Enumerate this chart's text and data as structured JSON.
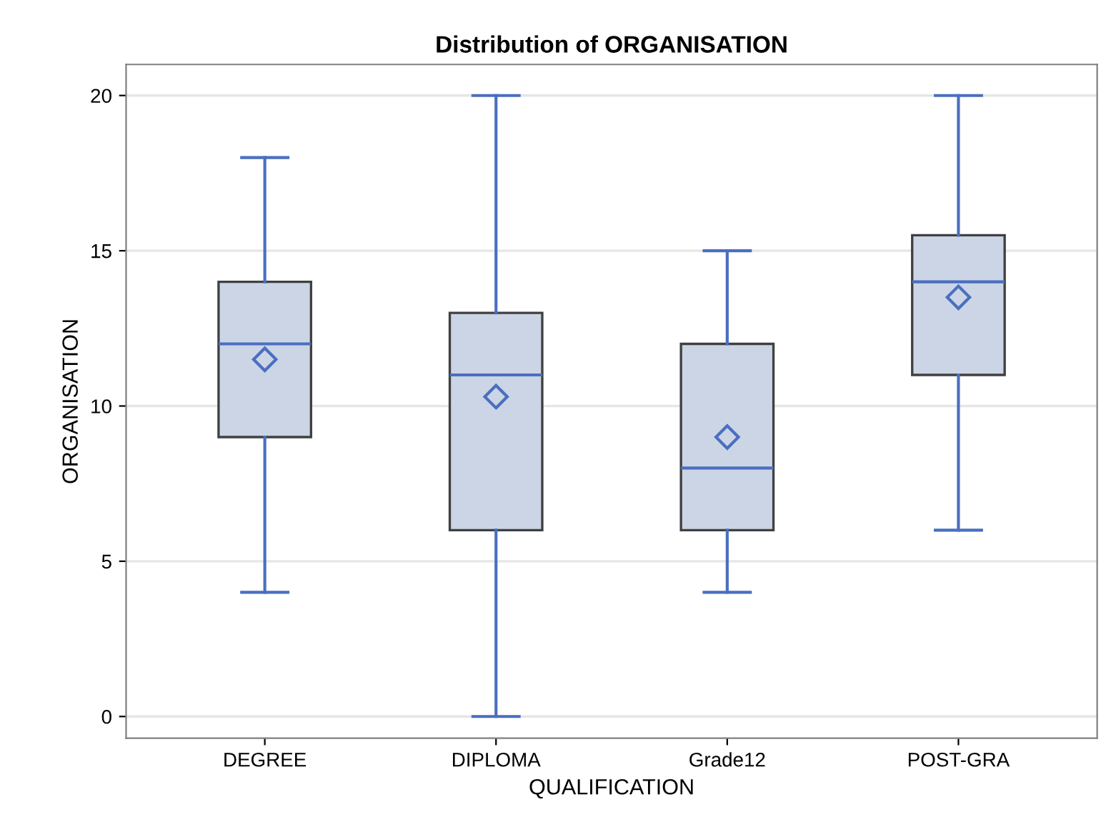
{
  "chart_data": {
    "type": "box",
    "title": "Distribution of ORGANISATION",
    "xlabel": "QUALIFICATION",
    "ylabel": "ORGANISATION",
    "categories": [
      "DEGREE",
      "DIPLOMA",
      "Grade12",
      "POST-GRA"
    ],
    "boxes": [
      {
        "low": 4,
        "q1": 9,
        "median": 12,
        "q3": 14,
        "high": 18,
        "mean": 11.5
      },
      {
        "low": 0,
        "q1": 6,
        "median": 11,
        "q3": 13,
        "high": 20,
        "mean": 10.3
      },
      {
        "low": 4,
        "q1": 6,
        "median": 8,
        "q3": 12,
        "high": 15,
        "mean": 9.0
      },
      {
        "low": 6,
        "q1": 11,
        "median": 14,
        "q3": 15.5,
        "high": 20,
        "mean": 13.5
      }
    ],
    "color": "#cbd5e5",
    "ylim": [
      -0.7,
      21
    ],
    "yticks": [
      0,
      5,
      10,
      15,
      20
    ],
    "grid": "y"
  }
}
